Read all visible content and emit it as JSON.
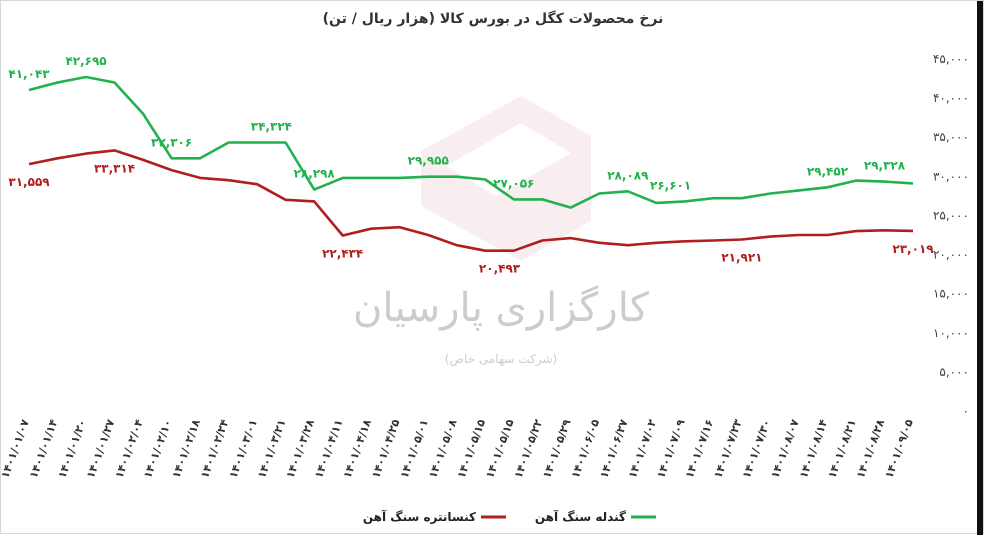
{
  "chart_data": {
    "type": "line",
    "title": "نرخ محصولات کگل در بورس کالا (هزار ریال / تن)",
    "ylim": [
      0,
      45000
    ],
    "y_ticks": [
      "۴۵,۰۰۰",
      "۴۰,۰۰۰",
      "۳۵,۰۰۰",
      "۳۰,۰۰۰",
      "۲۵,۰۰۰",
      "۲۰,۰۰۰",
      "۱۵,۰۰۰",
      "۱۰,۰۰۰",
      "۵,۰۰۰",
      "۰"
    ],
    "y_tick_values": [
      45000,
      40000,
      35000,
      30000,
      25000,
      20000,
      15000,
      10000,
      5000,
      0
    ],
    "x_labels": [
      "۱۴۰۱/۰۱/۰۷",
      "۱۴۰۱/۰۱/۱۴",
      "۱۴۰۱/۰۱/۲۰",
      "۱۴۰۱/۰۱/۲۷",
      "۱۴۰۱/۰۲/۰۴",
      "۱۴۰۱/۰۲/۱۰",
      "۱۴۰۱/۰۲/۱۸",
      "۱۴۰۱/۰۲/۲۴",
      "۱۴۰۱/۰۳/۰۱",
      "۱۴۰۱/۰۳/۲۱",
      "۱۴۰۱/۰۳/۲۸",
      "۱۴۰۱/۰۴/۱۱",
      "۱۴۰۱/۰۴/۱۸",
      "۱۴۰۱/۰۴/۲۵",
      "۱۴۰۱/۰۵/۰۱",
      "۱۴۰۱/۰۵/۰۸",
      "۱۴۰۱/۰۵/۱۵",
      "۱۴۰۱/۰۵/۱۵",
      "۱۴۰۱/۰۵/۲۲",
      "۱۴۰۱/۰۵/۲۹",
      "۱۴۰۱/۰۶/۰۵",
      "۱۴۰۱/۰۶/۲۷",
      "۱۴۰۱/۰۷/۰۲",
      "۱۴۰۱/۰۷/۰۹",
      "۱۴۰۱/۰۷/۱۶",
      "۱۴۰۱/۰۷/۲۳",
      "۱۴۰۱/۰۷/۳۰",
      "۱۴۰۱/۰۸/۰۷",
      "۱۴۰۱/۰۸/۱۴",
      "۱۴۰۱/۰۸/۲۱",
      "۱۴۰۱/۰۸/۲۸",
      "۱۴۰۱/۰۹/۰۵"
    ],
    "x_index": [
      0,
      1,
      2,
      3,
      4,
      5,
      6,
      7,
      8,
      9,
      10,
      11,
      12,
      13,
      14,
      15,
      16,
      17,
      18,
      19,
      20,
      21,
      22,
      23,
      24,
      25,
      26,
      27,
      28,
      29,
      30,
      31
    ],
    "series": [
      {
        "name": "گندله سنگ آهن",
        "color": "#22b14c",
        "values": [
          41043,
          42000,
          42695,
          42000,
          38000,
          32306,
          32306,
          34324,
          34324,
          34324,
          28298,
          29800,
          29800,
          29800,
          29955,
          29955,
          29600,
          27056,
          27056,
          26000,
          27800,
          28089,
          26601,
          26800,
          27200,
          27200,
          27800,
          28200,
          28600,
          29452,
          29328,
          29100
        ],
        "labels": [
          {
            "i": 0,
            "text": "۴۱,۰۴۳",
            "pos": "above"
          },
          {
            "i": 2,
            "text": "۴۲,۶۹۵",
            "pos": "above"
          },
          {
            "i": 5,
            "text": "۳۲,۳۰۶",
            "pos": "above"
          },
          {
            "i": 8.5,
            "text": "۳۴,۳۲۴",
            "pos": "above"
          },
          {
            "i": 10,
            "text": "۲۸,۲۹۸",
            "pos": "above"
          },
          {
            "i": 14,
            "text": "۲۹,۹۵۵",
            "pos": "above"
          },
          {
            "i": 17,
            "text": "۲۷,۰۵۶",
            "pos": "above"
          },
          {
            "i": 21,
            "text": "۲۸,۰۸۹",
            "pos": "above"
          },
          {
            "i": 22.5,
            "text": "۲۶,۶۰۱",
            "pos": "above"
          },
          {
            "i": 28,
            "text": "۲۹,۴۵۲",
            "pos": "above"
          },
          {
            "i": 30,
            "text": "۲۹,۳۲۸",
            "pos": "above"
          }
        ]
      },
      {
        "name": "کنسانتره سنگ آهن",
        "color": "#b01e1e",
        "values": [
          31559,
          32300,
          32900,
          33314,
          32100,
          30800,
          29800,
          29500,
          29000,
          27000,
          26800,
          22434,
          23300,
          23500,
          22500,
          21200,
          20493,
          20493,
          21800,
          22100,
          21500,
          21200,
          21500,
          21700,
          21800,
          21921,
          22300,
          22500,
          22500,
          23000,
          23100,
          23019
        ],
        "labels": [
          {
            "i": 0,
            "text": "۳۱,۵۵۹",
            "pos": "below"
          },
          {
            "i": 3,
            "text": "۳۳,۳۱۴",
            "pos": "below"
          },
          {
            "i": 11,
            "text": "۲۲,۴۳۴",
            "pos": "below"
          },
          {
            "i": 16.5,
            "text": "۲۰,۴۹۳",
            "pos": "below"
          },
          {
            "i": 25,
            "text": "۲۱,۹۲۱",
            "pos": "below"
          },
          {
            "i": 31,
            "text": "۲۳,۰۱۹",
            "pos": "below"
          }
        ]
      }
    ],
    "legend": [
      {
        "name": "گندله سنگ آهن",
        "color": "#22b14c"
      },
      {
        "name": "کنسانتره سنگ آهن",
        "color": "#b01e1e"
      }
    ],
    "legend_position": "bottom",
    "grid": false
  },
  "watermark": {
    "brand": "کارگزاری پارسیان",
    "subtitle": "(شرکت سهامی خاص)"
  }
}
